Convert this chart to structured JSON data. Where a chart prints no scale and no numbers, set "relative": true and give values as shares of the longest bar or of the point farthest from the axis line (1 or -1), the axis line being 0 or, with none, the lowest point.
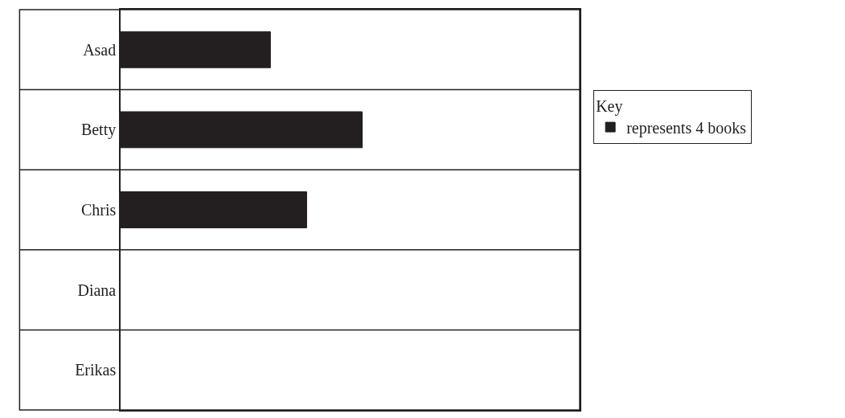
{
  "chart_data": {
    "type": "bar",
    "orientation": "horizontal",
    "categories": [
      "Asad",
      "Betty",
      "Chris",
      "Diana",
      "Erikas"
    ],
    "relative": true,
    "series": [
      {
        "name": "represents 4 books",
        "color": "#231f20",
        "values": [
          0.62,
          1,
          0.77,
          null,
          null
        ]
      }
    ],
    "legend_title": "Key",
    "legend": "right"
  }
}
